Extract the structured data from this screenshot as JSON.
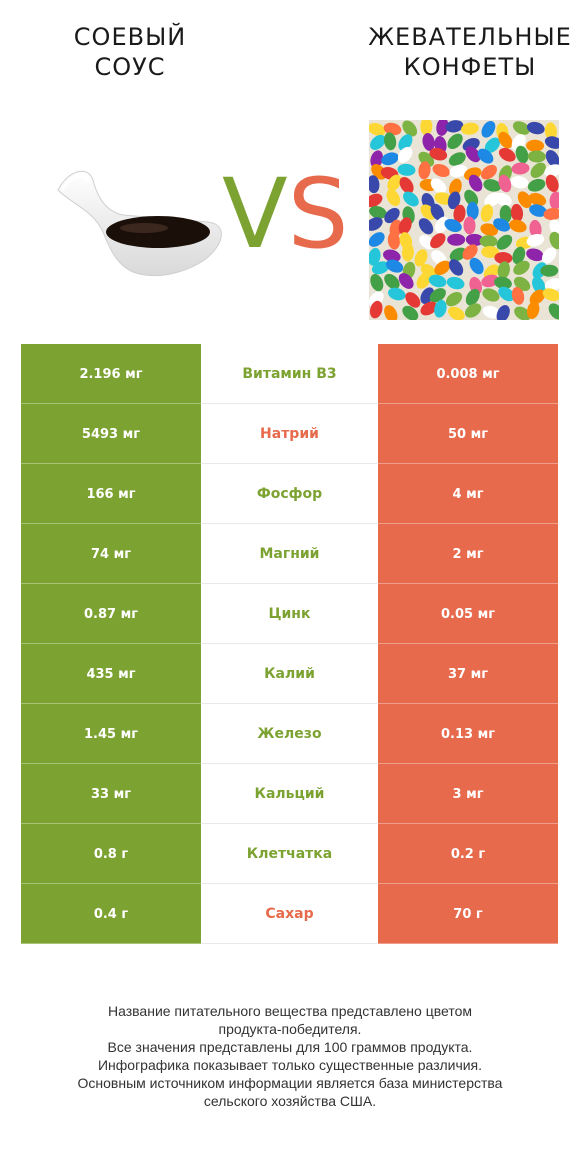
{
  "header": {
    "left_title_line1": "СОЕВЫЙ",
    "left_title_line2": "СОУС",
    "right_title_line1": "ЖЕВАТЕЛЬНЫЕ",
    "right_title_line2": "КОНФЕТЫ",
    "vs_v": "V",
    "vs_s": "S"
  },
  "colors": {
    "left_product": "#7ca332",
    "right_product": "#e76a4c"
  },
  "icons": {
    "left_image": "soy-sauce-gravy-boat",
    "right_image": "jelly-beans"
  },
  "rows": [
    {
      "left": "2.196 мг",
      "nutrient": "Витамин B3",
      "right": "0.008 мг",
      "winner": "left"
    },
    {
      "left": "5493 мг",
      "nutrient": "Натрий",
      "right": "50 мг",
      "winner": "right"
    },
    {
      "left": "166 мг",
      "nutrient": "Фосфор",
      "right": "4 мг",
      "winner": "left"
    },
    {
      "left": "74 мг",
      "nutrient": "Магний",
      "right": "2 мг",
      "winner": "left"
    },
    {
      "left": "0.87 мг",
      "nutrient": "Цинк",
      "right": "0.05 мг",
      "winner": "left"
    },
    {
      "left": "435 мг",
      "nutrient": "Калий",
      "right": "37 мг",
      "winner": "left"
    },
    {
      "left": "1.45 мг",
      "nutrient": "Железо",
      "right": "0.13 мг",
      "winner": "left"
    },
    {
      "left": "33 мг",
      "nutrient": "Кальций",
      "right": "3 мг",
      "winner": "left"
    },
    {
      "left": "0.8 г",
      "nutrient": "Клетчатка",
      "right": "0.2 г",
      "winner": "left"
    },
    {
      "left": "0.4 г",
      "nutrient": "Сахар",
      "right": "70 г",
      "winner": "right"
    }
  ],
  "footer": {
    "line1": "Название питательного вещества представлено цветом",
    "line2": "продукта-победителя.",
    "line3": "Все значения представлены для 100 граммов продукта.",
    "line4": "Инфографика показывает только существенные различия.",
    "line5": "Основным источником информации является база министерства",
    "line6": "сельского хозяйства США."
  }
}
